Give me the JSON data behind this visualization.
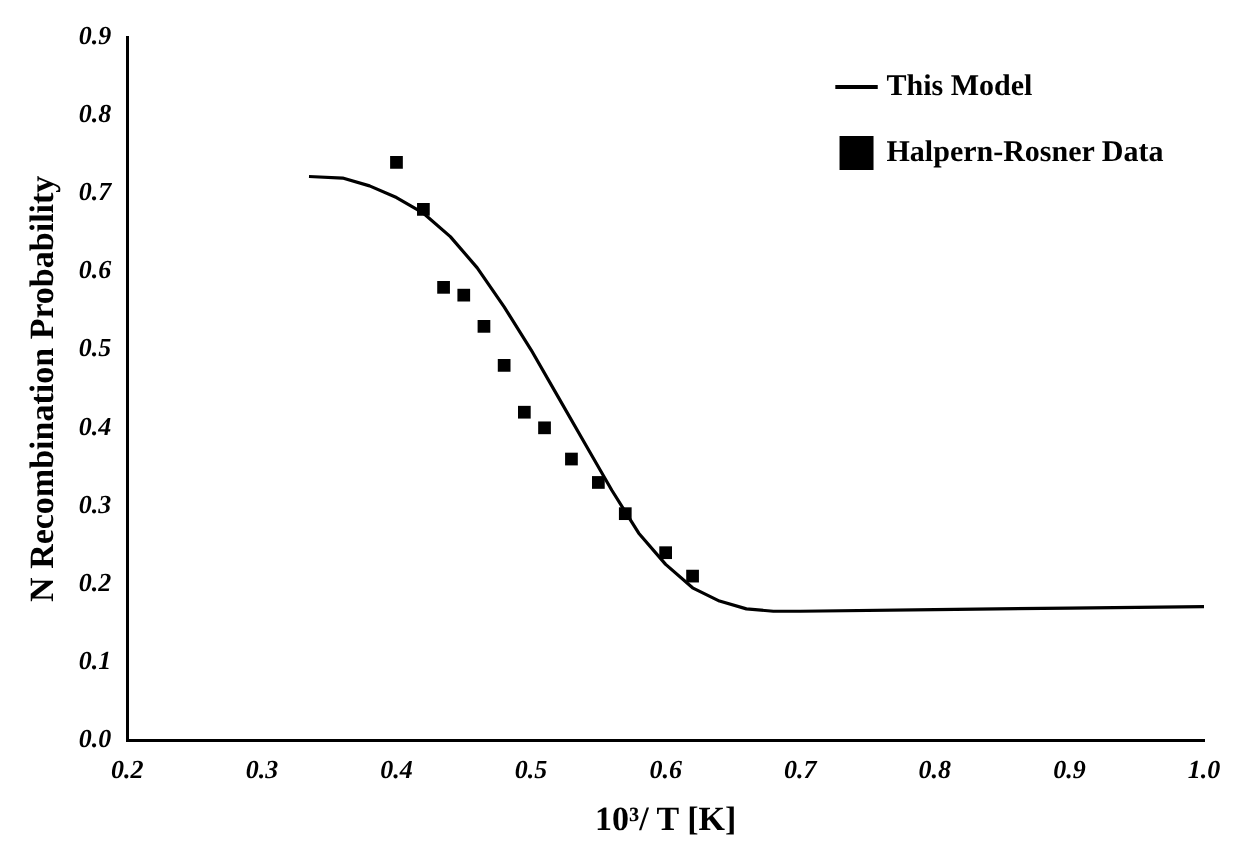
{
  "chart_data": {
    "type": "scatter",
    "xlabel": "10³/ T [K]",
    "ylabel": "N Recombination Probability",
    "xlim": [
      0.2,
      1.0
    ],
    "xticks": [
      {
        "value": 0.2,
        "label": "0.2"
      },
      {
        "value": 0.3,
        "label": "0.3"
      },
      {
        "value": 0.4,
        "label": "0.4"
      },
      {
        "value": 0.5,
        "label": "0.5"
      },
      {
        "value": 0.6,
        "label": "0.6"
      },
      {
        "value": 0.7,
        "label": "0.7"
      },
      {
        "value": 0.8,
        "label": "0.8"
      },
      {
        "value": 0.9,
        "label": "0.9"
      },
      {
        "value": 1.0,
        "label": "1.0"
      }
    ],
    "ylim": [
      0,
      0.9
    ],
    "yticks": [
      {
        "value": 0,
        "label": "0.0"
      },
      {
        "value": 0.1,
        "label": "0.1"
      },
      {
        "value": 0.2,
        "label": "0.2"
      },
      {
        "value": 0.3,
        "label": "0.3"
      },
      {
        "value": 0.4,
        "label": "0.4"
      },
      {
        "value": 0.5,
        "label": "0.5"
      },
      {
        "value": 0.6,
        "label": "0.6"
      },
      {
        "value": 0.7,
        "label": "0.7"
      },
      {
        "value": 0.8,
        "label": "0.8"
      },
      {
        "value": 0.9,
        "label": "0.9"
      }
    ],
    "grid": false,
    "legend": "top right",
    "marker": "square",
    "series": [
      {
        "name": "This Model",
        "type": "line",
        "color": "#000000",
        "marker": "none",
        "line_style": "solid",
        "x": [
          0.335,
          0.36,
          0.38,
          0.4,
          0.42,
          0.44,
          0.46,
          0.48,
          0.5,
          0.52,
          0.54,
          0.56,
          0.58,
          0.6,
          0.62,
          0.64,
          0.66,
          0.68,
          0.7,
          0.8,
          0.9,
          1.0
        ],
        "values": [
          0.722,
          0.72,
          0.71,
          0.695,
          0.675,
          0.645,
          0.605,
          0.555,
          0.5,
          0.44,
          0.38,
          0.32,
          0.265,
          0.225,
          0.195,
          0.178,
          0.168,
          0.165,
          0.165,
          0.167,
          0.169,
          0.171
        ]
      },
      {
        "name": "Halpern-Rosner Data",
        "color": "#000000",
        "x": [
          0.4,
          0.42,
          0.435,
          0.45,
          0.465,
          0.48,
          0.495,
          0.51,
          0.53,
          0.55,
          0.57,
          0.6,
          0.62
        ],
        "values": [
          0.74,
          0.68,
          0.58,
          0.57,
          0.53,
          0.48,
          0.42,
          0.4,
          0.36,
          0.33,
          0.29,
          0.24,
          0.21
        ]
      }
    ]
  }
}
